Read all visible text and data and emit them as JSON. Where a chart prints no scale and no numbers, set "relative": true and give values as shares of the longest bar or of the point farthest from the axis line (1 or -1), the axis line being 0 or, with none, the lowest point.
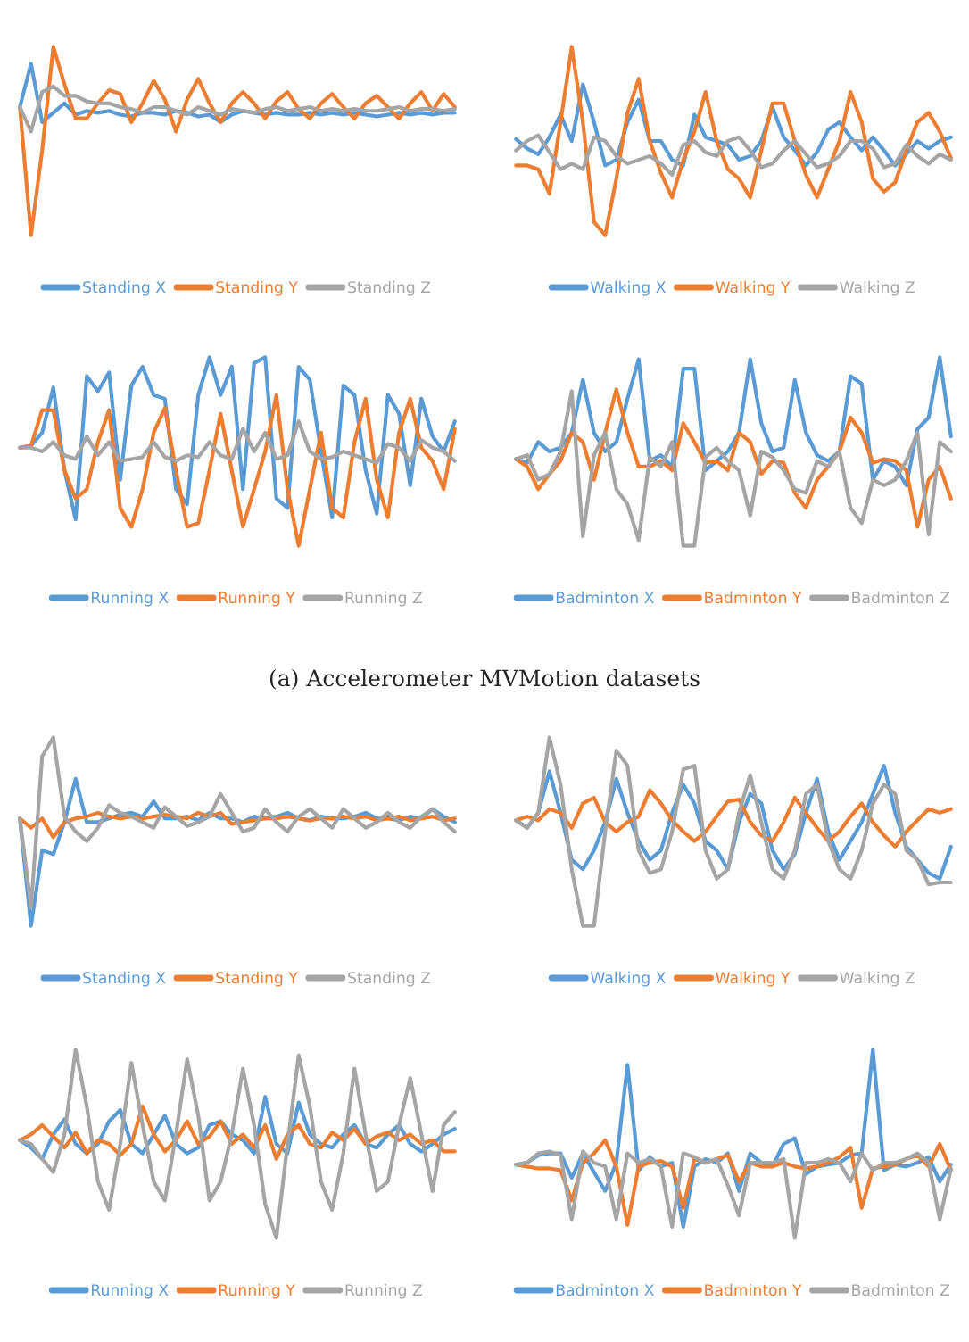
{
  "chart_data": [
    {
      "type": "line",
      "relative": true,
      "legend": "bottom",
      "tick_labels": false,
      "categories": [
        null,
        null,
        null,
        null,
        null,
        null,
        null,
        null,
        null,
        null,
        null,
        null,
        null,
        null,
        null,
        null,
        null,
        null,
        null,
        null,
        null,
        null,
        null,
        null,
        null,
        null,
        null,
        null,
        null,
        null,
        null,
        null,
        null,
        null,
        null,
        null,
        null,
        null,
        null,
        null
      ],
      "series": [
        {
          "name": "Standing X",
          "color": "#5b9bd5",
          "values": [
            0.68,
            0.91,
            0.6,
            0.65,
            0.7,
            0.64,
            0.66,
            0.65,
            0.66,
            0.64,
            0.63,
            0.65,
            0.65,
            0.64,
            0.66,
            0.65,
            0.63,
            0.64,
            0.6,
            0.64,
            0.66,
            0.65,
            0.64,
            0.65,
            0.64,
            0.64,
            0.65,
            0.64,
            0.65,
            0.64,
            0.65,
            0.64,
            0.63,
            0.64,
            0.65,
            0.64,
            0.65,
            0.64,
            0.65,
            0.65
          ]
        },
        {
          "name": "Standing Y",
          "color": "#ed7d31",
          "values": [
            0.68,
            0.0,
            0.45,
            1.0,
            0.8,
            0.62,
            0.62,
            0.7,
            0.77,
            0.75,
            0.6,
            0.7,
            0.82,
            0.72,
            0.55,
            0.72,
            0.83,
            0.7,
            0.6,
            0.7,
            0.76,
            0.7,
            0.62,
            0.71,
            0.76,
            0.67,
            0.62,
            0.7,
            0.75,
            0.68,
            0.62,
            0.7,
            0.74,
            0.68,
            0.62,
            0.7,
            0.76,
            0.66,
            0.75,
            0.68
          ]
        },
        {
          "name": "Standing Z",
          "color": "#a5a5a5",
          "values": [
            0.68,
            0.55,
            0.76,
            0.79,
            0.74,
            0.74,
            0.71,
            0.7,
            0.7,
            0.68,
            0.67,
            0.65,
            0.68,
            0.68,
            0.66,
            0.64,
            0.68,
            0.66,
            0.64,
            0.67,
            0.66,
            0.65,
            0.67,
            0.68,
            0.66,
            0.67,
            0.68,
            0.66,
            0.67,
            0.66,
            0.67,
            0.66,
            0.66,
            0.67,
            0.68,
            0.66,
            0.67,
            0.67,
            0.66,
            0.67
          ]
        }
      ]
    },
    {
      "type": "line",
      "relative": true,
      "legend": "bottom",
      "tick_labels": false,
      "categories": [
        null,
        null,
        null,
        null,
        null,
        null,
        null,
        null,
        null,
        null,
        null,
        null,
        null,
        null,
        null,
        null,
        null,
        null,
        null,
        null,
        null,
        null,
        null,
        null,
        null,
        null,
        null,
        null,
        null,
        null,
        null,
        null,
        null,
        null,
        null,
        null,
        null,
        null,
        null,
        null
      ],
      "series": [
        {
          "name": "Walking X",
          "color": "#5b9bd5",
          "values": [
            0.51,
            0.46,
            0.43,
            0.52,
            0.64,
            0.5,
            0.8,
            0.6,
            0.37,
            0.4,
            0.6,
            0.72,
            0.5,
            0.5,
            0.4,
            0.37,
            0.64,
            0.52,
            0.5,
            0.48,
            0.4,
            0.42,
            0.5,
            0.68,
            0.52,
            0.45,
            0.37,
            0.44,
            0.56,
            0.6,
            0.52,
            0.45,
            0.52,
            0.45,
            0.37,
            0.43,
            0.5,
            0.46,
            0.5,
            0.52
          ]
        },
        {
          "name": "Walking Y",
          "color": "#ed7d31",
          "values": [
            0.37,
            0.37,
            0.35,
            0.22,
            0.6,
            1.0,
            0.6,
            0.07,
            0.0,
            0.3,
            0.65,
            0.83,
            0.5,
            0.33,
            0.2,
            0.4,
            0.55,
            0.76,
            0.5,
            0.35,
            0.3,
            0.2,
            0.45,
            0.7,
            0.7,
            0.5,
            0.32,
            0.2,
            0.35,
            0.5,
            0.76,
            0.6,
            0.3,
            0.23,
            0.28,
            0.45,
            0.6,
            0.65,
            0.55,
            0.41
          ]
        },
        {
          "name": "Walking Z",
          "color": "#a5a5a5",
          "values": [
            0.45,
            0.5,
            0.53,
            0.44,
            0.35,
            0.38,
            0.35,
            0.52,
            0.5,
            0.42,
            0.38,
            0.4,
            0.42,
            0.38,
            0.32,
            0.48,
            0.5,
            0.44,
            0.42,
            0.5,
            0.52,
            0.45,
            0.36,
            0.38,
            0.45,
            0.5,
            0.43,
            0.36,
            0.38,
            0.42,
            0.5,
            0.5,
            0.46,
            0.36,
            0.38,
            0.48,
            0.42,
            0.38,
            0.43,
            0.4
          ]
        }
      ]
    },
    {
      "type": "line",
      "relative": true,
      "legend": "bottom",
      "tick_labels": false,
      "annotations": [
        "(a) Accelerometer MVMotion datasets"
      ],
      "categories": [
        null,
        null,
        null,
        null,
        null,
        null,
        null,
        null,
        null,
        null,
        null,
        null,
        null,
        null,
        null,
        null,
        null,
        null,
        null,
        null,
        null,
        null,
        null,
        null,
        null,
        null,
        null,
        null,
        null,
        null,
        null,
        null,
        null,
        null,
        null,
        null,
        null,
        null,
        null,
        null
      ],
      "series": [
        {
          "name": "Running X",
          "color": "#5b9bd5",
          "values": [
            0.52,
            0.53,
            0.6,
            0.84,
            0.4,
            0.14,
            0.9,
            0.82,
            0.92,
            0.35,
            0.85,
            0.95,
            0.8,
            0.78,
            0.3,
            0.22,
            0.8,
            1.0,
            0.8,
            0.95,
            0.3,
            0.97,
            1.0,
            0.25,
            0.2,
            0.95,
            0.88,
            0.5,
            0.15,
            0.85,
            0.8,
            0.4,
            0.17,
            0.8,
            0.7,
            0.32,
            0.78,
            0.58,
            0.5,
            0.66
          ]
        },
        {
          "name": "Running Y",
          "color": "#ed7d31",
          "values": [
            0.52,
            0.53,
            0.72,
            0.72,
            0.4,
            0.25,
            0.3,
            0.55,
            0.72,
            0.2,
            0.1,
            0.3,
            0.6,
            0.73,
            0.4,
            0.1,
            0.12,
            0.4,
            0.7,
            0.4,
            0.1,
            0.3,
            0.5,
            0.8,
            0.3,
            0.0,
            0.3,
            0.6,
            0.2,
            0.15,
            0.55,
            0.78,
            0.35,
            0.15,
            0.6,
            0.78,
            0.52,
            0.45,
            0.3,
            0.62
          ]
        },
        {
          "name": "Running Z",
          "color": "#a5a5a5",
          "values": [
            0.52,
            0.52,
            0.5,
            0.55,
            0.48,
            0.46,
            0.58,
            0.48,
            0.55,
            0.45,
            0.46,
            0.47,
            0.55,
            0.47,
            0.45,
            0.48,
            0.47,
            0.55,
            0.48,
            0.46,
            0.62,
            0.5,
            0.6,
            0.46,
            0.48,
            0.66,
            0.5,
            0.46,
            0.47,
            0.5,
            0.48,
            0.46,
            0.44,
            0.54,
            0.52,
            0.45,
            0.56,
            0.52,
            0.5,
            0.45
          ]
        }
      ]
    },
    {
      "type": "line",
      "relative": true,
      "legend": "bottom",
      "tick_labels": false,
      "categories": [
        null,
        null,
        null,
        null,
        null,
        null,
        null,
        null,
        null,
        null,
        null,
        null,
        null,
        null,
        null,
        null,
        null,
        null,
        null,
        null,
        null,
        null,
        null,
        null,
        null,
        null,
        null,
        null,
        null,
        null,
        null,
        null,
        null,
        null,
        null,
        null,
        null,
        null,
        null,
        null
      ],
      "series": [
        {
          "name": "Badminton X",
          "color": "#5b9bd5",
          "values": [
            0.46,
            0.44,
            0.55,
            0.5,
            0.52,
            0.6,
            0.88,
            0.6,
            0.5,
            0.55,
            0.78,
            0.99,
            0.45,
            0.48,
            0.42,
            0.94,
            0.94,
            0.4,
            0.45,
            0.5,
            0.6,
            0.99,
            0.65,
            0.5,
            0.52,
            0.88,
            0.6,
            0.48,
            0.45,
            0.5,
            0.9,
            0.86,
            0.35,
            0.45,
            0.42,
            0.32,
            0.62,
            0.68,
            1.0,
            0.58
          ]
        },
        {
          "name": "Badminton Y",
          "color": "#ed7d31",
          "values": [
            0.46,
            0.42,
            0.3,
            0.38,
            0.45,
            0.6,
            0.55,
            0.35,
            0.6,
            0.83,
            0.6,
            0.42,
            0.42,
            0.45,
            0.4,
            0.65,
            0.55,
            0.44,
            0.45,
            0.4,
            0.6,
            0.55,
            0.38,
            0.45,
            0.44,
            0.28,
            0.2,
            0.35,
            0.42,
            0.5,
            0.68,
            0.6,
            0.44,
            0.46,
            0.45,
            0.4,
            0.1,
            0.35,
            0.42,
            0.25
          ]
        },
        {
          "name": "Badminton Z",
          "color": "#a5a5a5",
          "values": [
            0.46,
            0.48,
            0.35,
            0.38,
            0.5,
            0.82,
            0.05,
            0.48,
            0.6,
            0.3,
            0.22,
            0.03,
            0.47,
            0.42,
            0.55,
            0.0,
            0.0,
            0.47,
            0.52,
            0.45,
            0.4,
            0.16,
            0.5,
            0.47,
            0.4,
            0.3,
            0.28,
            0.45,
            0.42,
            0.5,
            0.2,
            0.12,
            0.35,
            0.32,
            0.35,
            0.45,
            0.6,
            0.06,
            0.55,
            0.5
          ]
        }
      ]
    },
    {
      "type": "line",
      "relative": true,
      "legend": "bottom",
      "tick_labels": false,
      "categories": [
        null,
        null,
        null,
        null,
        null,
        null,
        null,
        null,
        null,
        null,
        null,
        null,
        null,
        null,
        null,
        null,
        null,
        null,
        null,
        null,
        null,
        null,
        null,
        null,
        null,
        null,
        null,
        null,
        null,
        null,
        null,
        null,
        null,
        null,
        null,
        null,
        null,
        null,
        null,
        null
      ],
      "series": [
        {
          "name": "Standing X",
          "color": "#5b9bd5",
          "values": [
            0.57,
            0.0,
            0.4,
            0.38,
            0.55,
            0.78,
            0.55,
            0.55,
            0.57,
            0.59,
            0.6,
            0.58,
            0.66,
            0.57,
            0.57,
            0.58,
            0.56,
            0.6,
            0.57,
            0.57,
            0.55,
            0.58,
            0.57,
            0.58,
            0.6,
            0.57,
            0.56,
            0.58,
            0.57,
            0.57,
            0.58,
            0.6,
            0.57,
            0.57,
            0.56,
            0.58,
            0.57,
            0.62,
            0.58,
            0.55
          ]
        },
        {
          "name": "Standing Y",
          "color": "#ed7d31",
          "values": [
            0.57,
            0.52,
            0.57,
            0.47,
            0.55,
            0.57,
            0.58,
            0.6,
            0.58,
            0.57,
            0.58,
            0.57,
            0.58,
            0.59,
            0.58,
            0.57,
            0.6,
            0.58,
            0.6,
            0.54,
            0.55,
            0.56,
            0.57,
            0.57,
            0.58,
            0.57,
            0.56,
            0.57,
            0.57,
            0.58,
            0.57,
            0.58,
            0.56,
            0.57,
            0.58,
            0.56,
            0.57,
            0.58,
            0.56,
            0.57
          ]
        },
        {
          "name": "Standing Z",
          "color": "#a5a5a5",
          "values": [
            0.57,
            0.1,
            0.9,
            1.0,
            0.58,
            0.5,
            0.45,
            0.52,
            0.64,
            0.6,
            0.58,
            0.55,
            0.52,
            0.63,
            0.58,
            0.53,
            0.55,
            0.58,
            0.7,
            0.6,
            0.5,
            0.52,
            0.62,
            0.55,
            0.5,
            0.58,
            0.62,
            0.57,
            0.52,
            0.62,
            0.57,
            0.52,
            0.55,
            0.6,
            0.55,
            0.52,
            0.58,
            0.62,
            0.55,
            0.5
          ]
        }
      ]
    },
    {
      "type": "line",
      "relative": true,
      "legend": "bottom",
      "tick_labels": false,
      "categories": [
        null,
        null,
        null,
        null,
        null,
        null,
        null,
        null,
        null,
        null,
        null,
        null,
        null,
        null,
        null,
        null,
        null,
        null,
        null,
        null,
        null,
        null,
        null,
        null,
        null,
        null,
        null,
        null,
        null,
        null,
        null,
        null,
        null,
        null,
        null,
        null,
        null,
        null,
        null,
        null
      ],
      "series": [
        {
          "name": "Walking X",
          "color": "#5b9bd5",
          "values": [
            0.56,
            0.52,
            0.6,
            0.82,
            0.6,
            0.35,
            0.3,
            0.4,
            0.55,
            0.78,
            0.6,
            0.45,
            0.35,
            0.4,
            0.6,
            0.75,
            0.65,
            0.45,
            0.4,
            0.3,
            0.55,
            0.7,
            0.65,
            0.4,
            0.3,
            0.38,
            0.6,
            0.78,
            0.5,
            0.35,
            0.45,
            0.55,
            0.7,
            0.85,
            0.6,
            0.42,
            0.35,
            0.28,
            0.25,
            0.42
          ]
        },
        {
          "name": "Walking Y",
          "color": "#ed7d31",
          "values": [
            0.56,
            0.58,
            0.56,
            0.62,
            0.6,
            0.52,
            0.65,
            0.68,
            0.55,
            0.5,
            0.55,
            0.58,
            0.72,
            0.65,
            0.56,
            0.5,
            0.45,
            0.5,
            0.58,
            0.66,
            0.67,
            0.55,
            0.48,
            0.45,
            0.55,
            0.68,
            0.6,
            0.52,
            0.45,
            0.5,
            0.58,
            0.65,
            0.55,
            0.48,
            0.42,
            0.5,
            0.56,
            0.62,
            0.6,
            0.62
          ]
        },
        {
          "name": "Walking Z",
          "color": "#a5a5a5",
          "values": [
            0.56,
            0.52,
            0.6,
            1.0,
            0.75,
            0.3,
            0.0,
            0.0,
            0.5,
            0.93,
            0.85,
            0.4,
            0.28,
            0.3,
            0.5,
            0.83,
            0.85,
            0.4,
            0.25,
            0.3,
            0.6,
            0.8,
            0.55,
            0.3,
            0.25,
            0.4,
            0.7,
            0.75,
            0.45,
            0.3,
            0.25,
            0.4,
            0.65,
            0.75,
            0.7,
            0.4,
            0.35,
            0.22,
            0.23,
            0.23
          ]
        }
      ]
    },
    {
      "type": "line",
      "relative": true,
      "legend": "bottom",
      "tick_labels": false,
      "categories": [
        null,
        null,
        null,
        null,
        null,
        null,
        null,
        null,
        null,
        null,
        null,
        null,
        null,
        null,
        null,
        null,
        null,
        null,
        null,
        null,
        null,
        null,
        null,
        null,
        null,
        null,
        null,
        null,
        null,
        null,
        null,
        null,
        null,
        null,
        null,
        null,
        null,
        null,
        null,
        null
      ],
      "series": [
        {
          "name": "Running X",
          "color": "#5b9bd5",
          "values": [
            0.52,
            0.48,
            0.42,
            0.55,
            0.63,
            0.5,
            0.45,
            0.5,
            0.62,
            0.68,
            0.5,
            0.45,
            0.55,
            0.65,
            0.5,
            0.45,
            0.48,
            0.6,
            0.62,
            0.55,
            0.52,
            0.45,
            0.75,
            0.5,
            0.45,
            0.72,
            0.55,
            0.5,
            0.48,
            0.55,
            0.6,
            0.5,
            0.48,
            0.55,
            0.6,
            0.5,
            0.46,
            0.5,
            0.55,
            0.58
          ]
        },
        {
          "name": "Running Y",
          "color": "#ed7d31",
          "values": [
            0.52,
            0.55,
            0.6,
            0.54,
            0.48,
            0.56,
            0.45,
            0.52,
            0.5,
            0.44,
            0.5,
            0.7,
            0.55,
            0.46,
            0.52,
            0.62,
            0.5,
            0.54,
            0.62,
            0.5,
            0.55,
            0.48,
            0.6,
            0.42,
            0.55,
            0.6,
            0.5,
            0.48,
            0.56,
            0.52,
            0.58,
            0.5,
            0.54,
            0.56,
            0.52,
            0.55,
            0.5,
            0.52,
            0.46,
            0.46
          ]
        },
        {
          "name": "Running Z",
          "color": "#a5a5a5",
          "values": [
            0.52,
            0.5,
            0.42,
            0.35,
            0.55,
            1.0,
            0.7,
            0.3,
            0.15,
            0.5,
            0.93,
            0.6,
            0.3,
            0.2,
            0.55,
            0.95,
            0.65,
            0.2,
            0.3,
            0.55,
            0.9,
            0.6,
            0.18,
            0.0,
            0.5,
            0.97,
            0.7,
            0.3,
            0.15,
            0.45,
            0.9,
            0.55,
            0.25,
            0.3,
            0.6,
            0.85,
            0.55,
            0.25,
            0.6,
            0.67
          ]
        }
      ]
    },
    {
      "type": "line",
      "relative": true,
      "legend": "bottom",
      "tick_labels": false,
      "categories": [
        null,
        null,
        null,
        null,
        null,
        null,
        null,
        null,
        null,
        null,
        null,
        null,
        null,
        null,
        null,
        null,
        null,
        null,
        null,
        null,
        null,
        null,
        null,
        null,
        null,
        null,
        null,
        null,
        null,
        null,
        null,
        null,
        null,
        null,
        null,
        null,
        null,
        null,
        null,
        null
      ],
      "series": [
        {
          "name": "Badminton X",
          "color": "#5b9bd5",
          "values": [
            0.39,
            0.4,
            0.44,
            0.45,
            0.45,
            0.32,
            0.45,
            0.35,
            0.25,
            0.4,
            0.92,
            0.36,
            0.43,
            0.38,
            0.4,
            0.06,
            0.38,
            0.42,
            0.4,
            0.45,
            0.25,
            0.45,
            0.4,
            0.38,
            0.5,
            0.53,
            0.34,
            0.38,
            0.39,
            0.4,
            0.44,
            0.45,
            1.0,
            0.36,
            0.39,
            0.38,
            0.4,
            0.43,
            0.3,
            0.39
          ]
        },
        {
          "name": "Badminton Y",
          "color": "#ed7d31",
          "values": [
            0.39,
            0.38,
            0.37,
            0.37,
            0.36,
            0.2,
            0.4,
            0.45,
            0.52,
            0.38,
            0.07,
            0.38,
            0.4,
            0.41,
            0.38,
            0.16,
            0.42,
            0.4,
            0.42,
            0.44,
            0.3,
            0.4,
            0.38,
            0.38,
            0.4,
            0.38,
            0.37,
            0.38,
            0.4,
            0.43,
            0.48,
            0.16,
            0.37,
            0.38,
            0.39,
            0.42,
            0.44,
            0.38,
            0.5,
            0.36
          ]
        },
        {
          "name": "Badminton Z",
          "color": "#a5a5a5",
          "values": [
            0.39,
            0.4,
            0.45,
            0.46,
            0.44,
            0.1,
            0.46,
            0.4,
            0.38,
            0.1,
            0.45,
            0.4,
            0.42,
            0.38,
            0.06,
            0.45,
            0.43,
            0.4,
            0.42,
            0.28,
            0.12,
            0.4,
            0.4,
            0.4,
            0.42,
            0.0,
            0.4,
            0.4,
            0.42,
            0.4,
            0.3,
            0.45,
            0.36,
            0.4,
            0.4,
            0.42,
            0.45,
            0.4,
            0.1,
            0.37
          ]
        }
      ]
    }
  ]
}
